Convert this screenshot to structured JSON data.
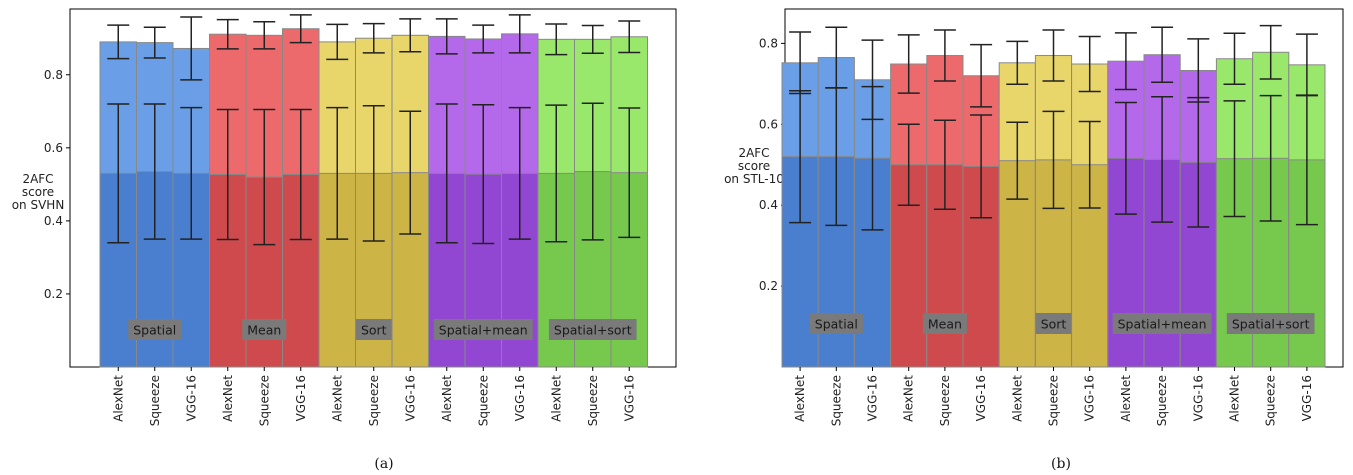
{
  "colors": {
    "Spatial": [
      "#4a7fcf",
      "#6a9ee6"
    ],
    "Mean": [
      "#cf4a4d",
      "#ec6a6c"
    ],
    "Sort": [
      "#cdb447",
      "#e8d66a"
    ],
    "Spatial+mean": [
      "#9247d2",
      "#b469ea"
    ],
    "Spatial+sort": [
      "#76c94c",
      "#9ae86b"
    ],
    "group_label_bg": "#7a7a7a",
    "bar_edge": "#888888",
    "errorbar": "#222222"
  },
  "chart_data": [
    {
      "type": "bar",
      "id": "svhn",
      "caption": "(a)",
      "ylabel": [
        "2AFC",
        "score",
        "on SVHN"
      ],
      "ylim": [
        0,
        0.98
      ],
      "yticks": [
        0.2,
        0.4,
        0.6,
        0.8
      ],
      "groups": [
        "Spatial",
        "Mean",
        "Sort",
        "Spatial+mean",
        "Spatial+sort"
      ],
      "categories": [
        "AlexNet",
        "Squeeze",
        "VGG-16"
      ],
      "series": [
        {
          "name": "Spatial",
          "low": [
            0.53,
            0.535,
            0.53
          ],
          "low_err": [
            0.19,
            0.185,
            0.18
          ],
          "high": [
            0.89,
            0.888,
            0.872
          ],
          "high_err": [
            0.046,
            0.042,
            0.086
          ]
        },
        {
          "name": "Mean",
          "low": [
            0.527,
            0.52,
            0.527
          ],
          "low_err": [
            0.178,
            0.185,
            0.178
          ],
          "high": [
            0.911,
            0.908,
            0.926
          ],
          "high_err": [
            0.04,
            0.037,
            0.038
          ]
        },
        {
          "name": "Sort",
          "low": [
            0.53,
            0.53,
            0.532
          ],
          "low_err": [
            0.18,
            0.185,
            0.168
          ],
          "high": [
            0.89,
            0.9,
            0.908
          ],
          "high_err": [
            0.048,
            0.04,
            0.045
          ]
        },
        {
          "name": "Spatial+mean",
          "low": [
            0.53,
            0.528,
            0.53
          ],
          "low_err": [
            0.19,
            0.19,
            0.18
          ],
          "high": [
            0.905,
            0.898,
            0.912
          ],
          "high_err": [
            0.048,
            0.038,
            0.052
          ]
        },
        {
          "name": "Spatial+sort",
          "low": [
            0.53,
            0.535,
            0.532
          ],
          "low_err": [
            0.187,
            0.187,
            0.177
          ],
          "high": [
            0.897,
            0.897,
            0.904
          ],
          "high_err": [
            0.042,
            0.038,
            0.043
          ]
        }
      ]
    },
    {
      "type": "bar",
      "id": "stl10",
      "caption": "(b)",
      "ylabel": [
        "2AFC",
        "score",
        "on STL-10"
      ],
      "ylim": [
        0,
        0.885
      ],
      "yticks": [
        0.2,
        0.4,
        0.6,
        0.8
      ],
      "groups": [
        "Spatial",
        "Mean",
        "Sort",
        "Spatial+mean",
        "Spatial+sort"
      ],
      "categories": [
        "AlexNet",
        "Squeeze",
        "VGG-16"
      ],
      "series": [
        {
          "name": "Spatial",
          "low": [
            0.52,
            0.52,
            0.516
          ],
          "low_err": [
            0.163,
            0.17,
            0.177
          ],
          "high": [
            0.752,
            0.765,
            0.71
          ],
          "high_err": [
            0.076,
            0.075,
            0.098
          ]
        },
        {
          "name": "Mean",
          "low": [
            0.5,
            0.5,
            0.496
          ],
          "low_err": [
            0.1,
            0.11,
            0.127
          ],
          "high": [
            0.749,
            0.77,
            0.72
          ],
          "high_err": [
            0.072,
            0.063,
            0.077
          ]
        },
        {
          "name": "Sort",
          "low": [
            0.51,
            0.512,
            0.5
          ],
          "low_err": [
            0.095,
            0.12,
            0.107
          ],
          "high": [
            0.752,
            0.77,
            0.749
          ],
          "high_err": [
            0.053,
            0.063,
            0.068
          ]
        },
        {
          "name": "Spatial+mean",
          "low": [
            0.516,
            0.513,
            0.506
          ],
          "low_err": [
            0.138,
            0.155,
            0.16
          ],
          "high": [
            0.756,
            0.772,
            0.733
          ],
          "high_err": [
            0.07,
            0.068,
            0.078
          ]
        },
        {
          "name": "Spatial+sort",
          "low": [
            0.515,
            0.516,
            0.512
          ],
          "low_err": [
            0.143,
            0.155,
            0.16
          ],
          "high": [
            0.762,
            0.778,
            0.747
          ],
          "high_err": [
            0.063,
            0.066,
            0.076
          ]
        }
      ]
    }
  ]
}
